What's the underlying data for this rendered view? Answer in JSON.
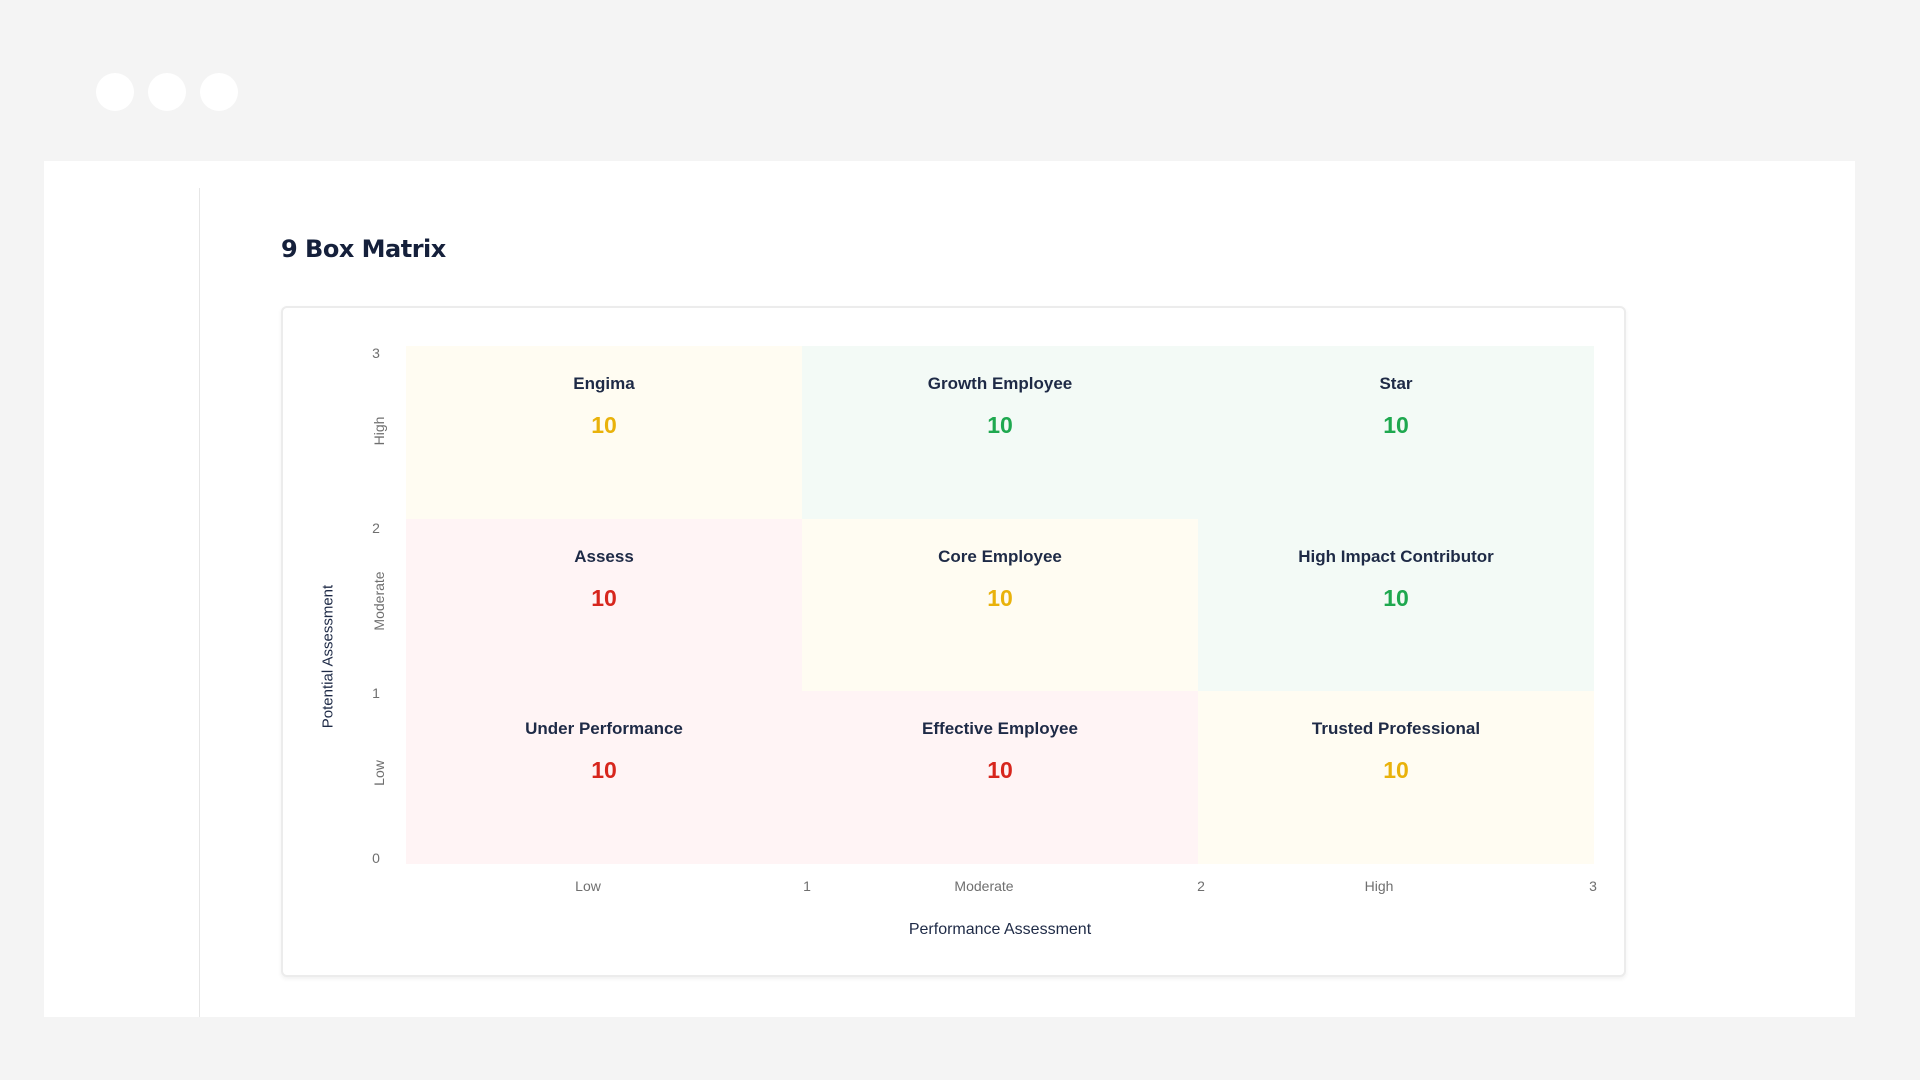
{
  "page": {
    "title": "9 Box Matrix"
  },
  "chart_data": {
    "type": "heatmap",
    "xlabel": "Performance Assessment",
    "ylabel": "Potential Assessment",
    "x_ticks": [
      "1",
      "2",
      "3"
    ],
    "y_ticks": [
      "0",
      "1",
      "2",
      "3"
    ],
    "x_categories": [
      "Low",
      "Moderate",
      "High"
    ],
    "y_categories": [
      "Low",
      "Moderate",
      "High"
    ],
    "xlim": [
      0,
      3
    ],
    "ylim": [
      0,
      3
    ],
    "cells": [
      {
        "label": "Engima",
        "value": "10",
        "performance": "Low",
        "potential": "High",
        "color": "yellow"
      },
      {
        "label": "Growth Employee",
        "value": "10",
        "performance": "Moderate",
        "potential": "High",
        "color": "green"
      },
      {
        "label": "Star",
        "value": "10",
        "performance": "High",
        "potential": "High",
        "color": "green"
      },
      {
        "label": "Assess",
        "value": "10",
        "performance": "Low",
        "potential": "Moderate",
        "color": "red"
      },
      {
        "label": "Core Employee",
        "value": "10",
        "performance": "Moderate",
        "potential": "Moderate",
        "color": "yellow"
      },
      {
        "label": "High Impact Contributor",
        "value": "10",
        "performance": "High",
        "potential": "Moderate",
        "color": "green"
      },
      {
        "label": "Under Performance",
        "value": "10",
        "performance": "Low",
        "potential": "Low",
        "color": "red"
      },
      {
        "label": "Effective Employee",
        "value": "10",
        "performance": "Moderate",
        "potential": "Low",
        "color": "red"
      },
      {
        "label": "Trusted Professional",
        "value": "10",
        "performance": "High",
        "potential": "Low",
        "color": "yellow"
      }
    ]
  }
}
